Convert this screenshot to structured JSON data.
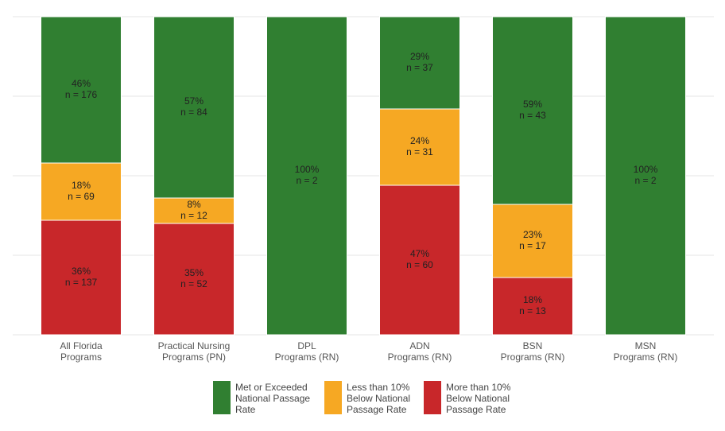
{
  "chart_data": {
    "type": "stacked_bar",
    "categories": [
      "All Florida\nPrograms",
      "Practical Nursing\nPrograms (PN)",
      "DPL\nPrograms (RN)",
      "ADN\nPrograms (RN)",
      "BSN\nPrograms (RN)",
      "MSN\nPrograms (RN)"
    ],
    "ylim": [
      0,
      100
    ],
    "yticks": [
      0,
      25,
      50,
      75,
      100
    ],
    "grid": true,
    "legend": "bottom",
    "series": [
      {
        "name": "More than 10%\nBelow National\nPassage Rate",
        "color": "#c8272a",
        "values": [
          36,
          35,
          0,
          47,
          18,
          0
        ],
        "value_labels": [
          "36%",
          "35%",
          null,
          "47%",
          "18%",
          null
        ],
        "count_labels": [
          "n = 137",
          "n = 52",
          null,
          "n = 60",
          "n = 13",
          null
        ]
      },
      {
        "name": "Less than 10%\nBelow National\nPassage Rate",
        "color": "#f6a823",
        "values": [
          18,
          8,
          0,
          24,
          23,
          0
        ],
        "value_labels": [
          "18%",
          "8%",
          null,
          "24%",
          "23%",
          null
        ],
        "count_labels": [
          "n = 69",
          "n = 12",
          null,
          "n = 31",
          "n = 17",
          null
        ]
      },
      {
        "name": "Met or Exceeded\nNational Passage\nRate",
        "color": "#307f31",
        "values": [
          46,
          57,
          100,
          29,
          59,
          100
        ],
        "value_labels": [
          "46%",
          "57%",
          "100%",
          "29%",
          "59%",
          "100%"
        ],
        "count_labels": [
          "n = 176",
          "n = 84",
          "n = 2",
          "n = 37",
          "n = 43",
          "n = 2"
        ]
      }
    ]
  }
}
